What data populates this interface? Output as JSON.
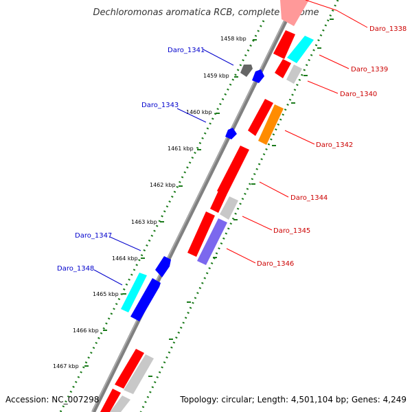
{
  "title": "Dechloromonas aromatica RCB, complete genome",
  "accession": "Accession: NC_007298",
  "topology": "Topology: circular; Length: 4,501,104 bp; Genes: 4,249",
  "colors": {
    "backbone": "#808080",
    "ticks_dotted": "#1a7a1a",
    "forward_label": "#0000cc",
    "reverse_label": "#cc0000",
    "red": "#ff0000",
    "blue": "#0000ff",
    "cyan": "#00ffff",
    "orange": "#ff8c00",
    "purple": "#7b68ee",
    "grey": "#c8c8c8",
    "dark_grey": "#666666"
  },
  "ticks": [
    {
      "label": "1458 kbp"
    },
    {
      "label": "1459 kbp"
    },
    {
      "label": "1460 kbp"
    },
    {
      "label": "1461 kbp"
    },
    {
      "label": "1462 kbp"
    },
    {
      "label": "1463 kbp"
    },
    {
      "label": "1464 kbp"
    },
    {
      "label": "1465 kbp"
    },
    {
      "label": "1466 kbp"
    },
    {
      "label": "1467 kbp"
    }
  ],
  "gene_labels": [
    {
      "text": "Daro_1338",
      "strand": "reverse"
    },
    {
      "text": "Daro_1339",
      "strand": "reverse"
    },
    {
      "text": "Daro_1340",
      "strand": "reverse"
    },
    {
      "text": "Daro_1341",
      "strand": "forward"
    },
    {
      "text": "Daro_1342",
      "strand": "reverse"
    },
    {
      "text": "Daro_1343",
      "strand": "forward"
    },
    {
      "text": "Daro_1344",
      "strand": "reverse"
    },
    {
      "text": "Daro_1345",
      "strand": "reverse"
    },
    {
      "text": "Daro_1346",
      "strand": "reverse"
    },
    {
      "text": "Daro_1347",
      "strand": "forward"
    },
    {
      "text": "Daro_1348",
      "strand": "forward"
    }
  ]
}
